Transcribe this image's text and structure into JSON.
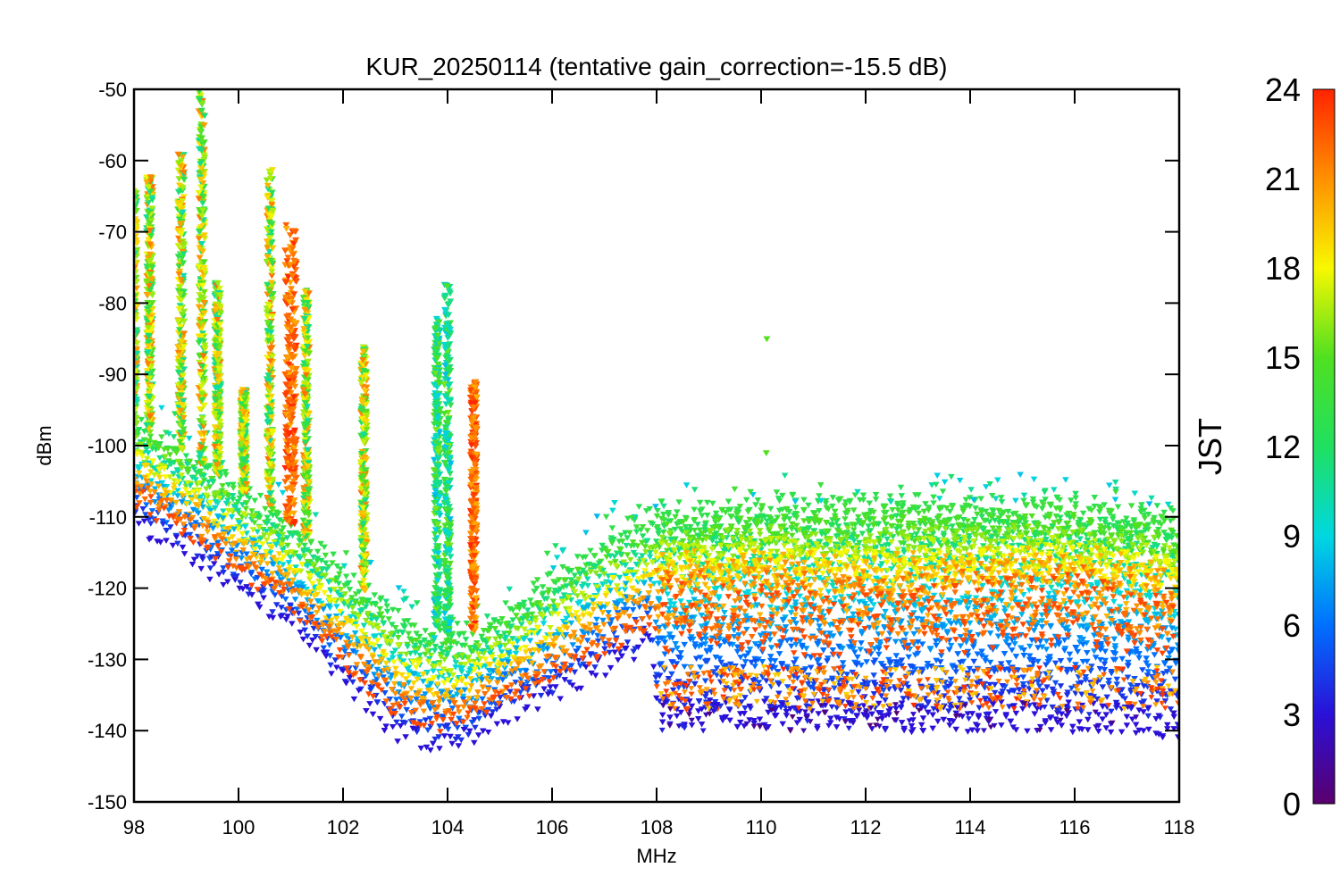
{
  "chart_data": {
    "type": "scatter",
    "title": "KUR_20250114 (tentative gain_correction=-15.5 dB)",
    "xlabel": "MHz",
    "ylabel": "dBm",
    "xlim": [
      98,
      118
    ],
    "ylim": [
      -150,
      -50
    ],
    "x_ticks": [
      "98",
      "100",
      "102",
      "104",
      "106",
      "108",
      "110",
      "112",
      "114",
      "116",
      "118"
    ],
    "y_ticks": [
      "-50",
      "-60",
      "-70",
      "-80",
      "-90",
      "-100",
      "-110",
      "-120",
      "-130",
      "-140",
      "-150"
    ],
    "colorbar": {
      "label": "JST",
      "range": [
        0,
        24
      ],
      "ticks": [
        "24",
        "21",
        "18",
        "15",
        "12",
        "9",
        "6",
        "3",
        "0"
      ],
      "colormap": "rainbow (purple-blue-cyan-green-yellow-orange-red)"
    },
    "grid": false,
    "noise_floor_by_hour": {
      "x_mhz": [
        98,
        99,
        100,
        101,
        102,
        103,
        103.8,
        104.5,
        105,
        106,
        107,
        107.9,
        108,
        110,
        112,
        114,
        116,
        118
      ],
      "hour_3_dbm": [
        -111,
        -115,
        -120,
        -125,
        -133,
        -140,
        -142,
        -141,
        -138,
        -135,
        -131,
        -128,
        -137,
        -138,
        -138,
        -138,
        -138,
        -139
      ],
      "hour_13_dbm": [
        -97,
        -101,
        -106,
        -111,
        -118,
        -124,
        -127,
        -126,
        -124,
        -119,
        -113,
        -110,
        -110,
        -109,
        -109,
        -109,
        -109,
        -111
      ],
      "hour_23_dbm": [
        -107,
        -112,
        -117,
        -122,
        -130,
        -137,
        -139,
        -138,
        -136,
        -132,
        -128,
        -125,
        -124,
        -124,
        -125,
        -124,
        -123,
        -125
      ]
    },
    "peaks": [
      {
        "x_mhz": 98.0,
        "max_dbm": -64
      },
      {
        "x_mhz": 98.3,
        "max_dbm": -62
      },
      {
        "x_mhz": 98.9,
        "max_dbm": -58
      },
      {
        "x_mhz": 99.3,
        "max_dbm": -50
      },
      {
        "x_mhz": 99.6,
        "max_dbm": -77
      },
      {
        "x_mhz": 100.1,
        "max_dbm": -92
      },
      {
        "x_mhz": 100.6,
        "max_dbm": -61
      },
      {
        "x_mhz": 101.0,
        "max_dbm": -69
      },
      {
        "x_mhz": 101.3,
        "max_dbm": -78
      },
      {
        "x_mhz": 102.4,
        "max_dbm": -86
      },
      {
        "x_mhz": 103.8,
        "max_dbm": -82
      },
      {
        "x_mhz": 104.0,
        "max_dbm": -77
      },
      {
        "x_mhz": 104.5,
        "max_dbm": -91
      },
      {
        "x_mhz": 110.1,
        "max_dbm": -85
      }
    ]
  }
}
